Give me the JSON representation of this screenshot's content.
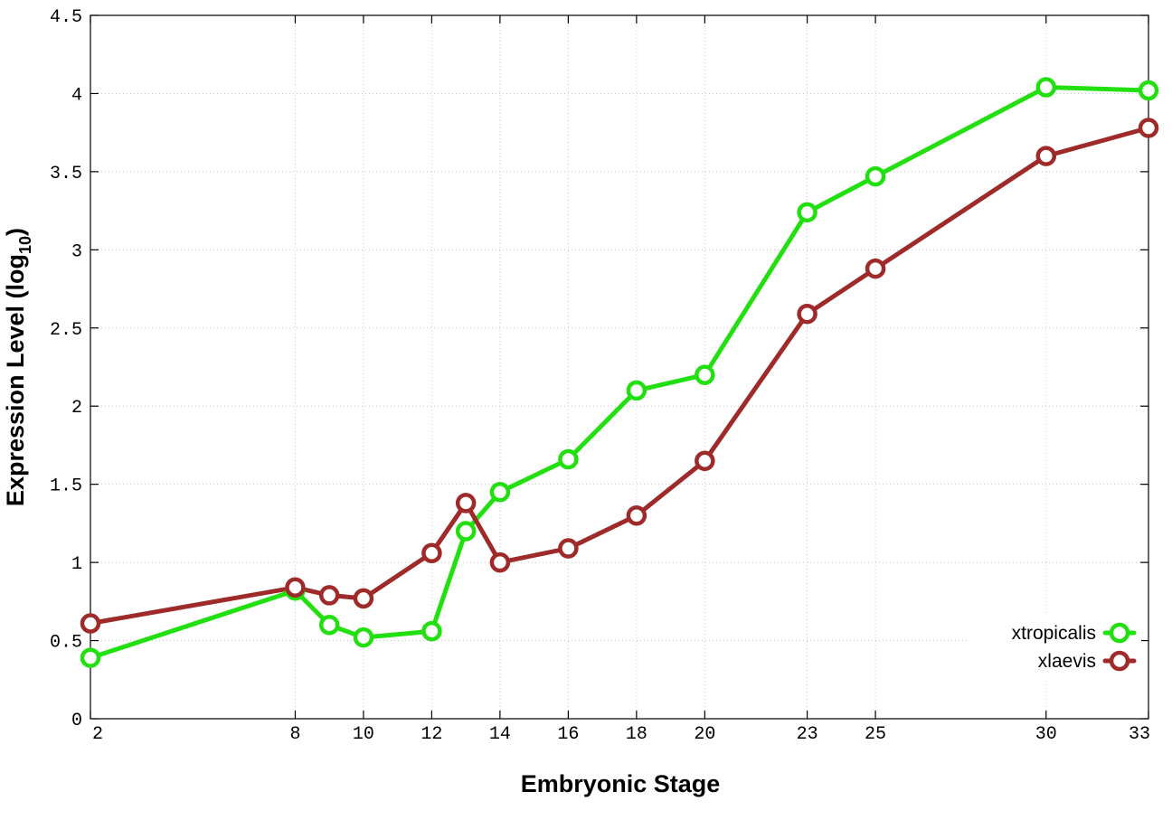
{
  "chart_data": {
    "type": "line",
    "xlabel": "Embryonic Stage",
    "ylabel": {
      "text": "Expression Level (log",
      "subscript": "10",
      "suffix": ")"
    },
    "xlim": [
      2,
      33
    ],
    "ylim": [
      0,
      4.5
    ],
    "x_ticks": [
      2,
      8,
      10,
      12,
      14,
      16,
      18,
      20,
      23,
      25,
      30,
      33
    ],
    "y_ticks": [
      0,
      0.5,
      1,
      1.5,
      2,
      2.5,
      3,
      3.5,
      4,
      4.5
    ],
    "y_tick_labels": [
      "0",
      "0.5",
      "1",
      "1.5",
      "2",
      "2.5",
      "3",
      "3.5",
      "4",
      "4.5"
    ],
    "x_tick_labels": [
      "2",
      "8",
      "10",
      "12",
      "14",
      "16",
      "18",
      "20",
      "23",
      "25",
      "30",
      "33"
    ],
    "grid": true,
    "legend_position": "bottom-right",
    "x": [
      2,
      8,
      9,
      10,
      12,
      13,
      14,
      16,
      18,
      20,
      23,
      25,
      30,
      33
    ],
    "series": [
      {
        "name": "xtropicalis",
        "color": "#22e010",
        "values": [
          0.39,
          0.82,
          0.6,
          0.52,
          0.56,
          1.2,
          1.45,
          1.66,
          2.1,
          2.2,
          3.24,
          3.47,
          4.04,
          4.02
        ]
      },
      {
        "name": "xlaevis",
        "color": "#9e2a2a",
        "values": [
          0.61,
          0.84,
          0.79,
          0.77,
          1.06,
          1.38,
          1.0,
          1.09,
          1.3,
          1.65,
          2.59,
          2.88,
          3.6,
          3.78
        ]
      }
    ]
  }
}
